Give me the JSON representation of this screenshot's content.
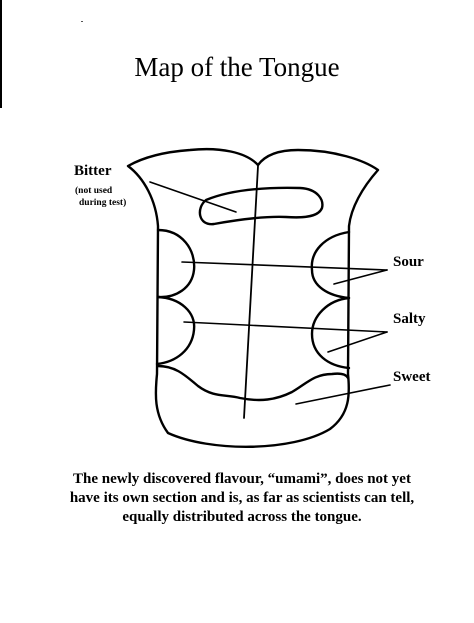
{
  "title": "Map of the Tongue",
  "labels": {
    "bitter": "Bitter",
    "bitter_note_line1": "(not used",
    "bitter_note_line2": "during test)",
    "sour": "Sour",
    "salty": "Salty",
    "sweet": "Sweet"
  },
  "caption": "The newly discovered flavour, “umami”, does not yet have its own section and is, as far as scientists can tell, equally distributed across the tongue."
}
